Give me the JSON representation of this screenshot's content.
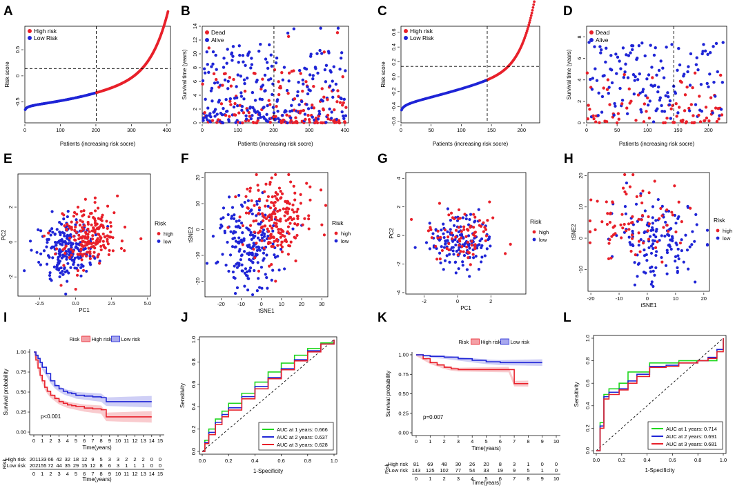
{
  "colors": {
    "high": "#e8202a",
    "low": "#1f25d6",
    "green": "#1fd61f",
    "highFill": "#f4a0a6",
    "lowFill": "#a8a8ee"
  },
  "chart_data": [
    {
      "panel": "A",
      "type": "scatter",
      "title": "",
      "xlabel": "Patients (increasing risk socre)",
      "ylabel": "Risk score",
      "n": 403,
      "cutoff_x": 201,
      "cutoff_y": 0.14,
      "xlim": [
        0,
        410
      ],
      "ylim": [
        -0.9,
        0.95
      ],
      "xticks": [
        0,
        100,
        200,
        300,
        400
      ],
      "yticks": [
        -0.5,
        0,
        0.5
      ],
      "legend": [
        "High risk",
        "Low Risk"
      ],
      "series": [
        "High risk",
        "Low Risk"
      ]
    },
    {
      "panel": "B",
      "type": "scatter",
      "title": "",
      "xlabel": "Patients (increasing risk socre)",
      "ylabel": "Survival time (years)",
      "n": 403,
      "cutoff_x": 201,
      "xlim": [
        0,
        410
      ],
      "ylim": [
        0,
        14
      ],
      "xticks": [
        0,
        100,
        200,
        300,
        400
      ],
      "yticks": [
        0,
        2,
        4,
        6,
        8,
        10,
        12,
        14
      ],
      "legend": [
        "Dead",
        "Alive"
      ]
    },
    {
      "panel": "C",
      "type": "scatter",
      "title": "",
      "xlabel": "Patients (increasing risk socre)",
      "ylabel": "Risk score",
      "n": 224,
      "cutoff_x": 143,
      "cutoff_y": 0.14,
      "xlim": [
        0,
        230
      ],
      "ylim": [
        -0.62,
        0.68
      ],
      "xticks": [
        0,
        50,
        100,
        150,
        200
      ],
      "yticks": [
        -0.6,
        -0.4,
        -0.2,
        0.0,
        0.2,
        0.4,
        0.6
      ],
      "legend": [
        "High risk",
        "Low Risk"
      ]
    },
    {
      "panel": "D",
      "type": "scatter",
      "title": "",
      "xlabel": "Patients (increasing risk socre)",
      "ylabel": "Survival time (years)",
      "n": 224,
      "cutoff_x": 143,
      "xlim": [
        0,
        230
      ],
      "ylim": [
        0,
        9
      ],
      "xticks": [
        0,
        50,
        100,
        150,
        200
      ],
      "yticks": [
        0,
        2,
        4,
        6,
        8
      ],
      "legend": [
        "Dead",
        "Alive"
      ]
    },
    {
      "panel": "E",
      "type": "scatter",
      "xlabel": "PC1",
      "ylabel": "PC2",
      "xlim": [
        -4,
        5.2
      ],
      "ylim": [
        -3.1,
        3.9
      ],
      "xticks": [
        "-2.5",
        "0.0",
        "2.5",
        "5.0"
      ],
      "xtickvals": [
        -2.5,
        0,
        2.5,
        5
      ],
      "yticks": [
        "-2",
        "0",
        "2"
      ],
      "ytickvals": [
        -2,
        0,
        2
      ],
      "legend_title": "Risk",
      "legend": [
        "high",
        "low"
      ],
      "n_high": 201,
      "n_low": 202
    },
    {
      "panel": "F",
      "type": "scatter",
      "xlabel": "tSNE1",
      "ylabel": "tSNE2",
      "xlim": [
        -28,
        33
      ],
      "ylim": [
        -26,
        22
      ],
      "xticks": [
        "-20",
        "-10",
        "0",
        "10",
        "20",
        "30"
      ],
      "xtickvals": [
        -20,
        -10,
        0,
        10,
        20,
        30
      ],
      "yticks": [
        "-20",
        "-10",
        "0",
        "10",
        "20"
      ],
      "ytickvals": [
        -20,
        -10,
        0,
        10,
        20
      ],
      "legend_title": "Risk",
      "legend": [
        "high",
        "low"
      ]
    },
    {
      "panel": "G",
      "type": "scatter",
      "xlabel": "PC1",
      "ylabel": "PC2",
      "xlim": [
        -3.1,
        4.1
      ],
      "ylim": [
        -4.1,
        4.4
      ],
      "xticks": [
        "-2",
        "0",
        "2"
      ],
      "xtickvals": [
        -2,
        0,
        2
      ],
      "yticks": [
        "-4",
        "-2",
        "0",
        "2",
        "4"
      ],
      "ytickvals": [
        -4,
        -2,
        0,
        2,
        4
      ],
      "legend_title": "Risk",
      "legend": [
        "high",
        "low"
      ]
    },
    {
      "panel": "H",
      "type": "scatter",
      "xlabel": "tSNE1",
      "ylabel": "tSNE2",
      "xlim": [
        -21,
        22
      ],
      "ylim": [
        -17,
        21
      ],
      "xticks": [
        "-20",
        "-10",
        "0",
        "10",
        "20"
      ],
      "xtickvals": [
        -20,
        -10,
        0,
        10,
        20
      ],
      "yticks": [
        "-10",
        "0",
        "10",
        "20"
      ],
      "ytickvals": [
        -10,
        0,
        10,
        20
      ],
      "legend_title": "Risk",
      "legend": [
        "high",
        "low"
      ]
    },
    {
      "panel": "I",
      "type": "line",
      "subtype": "kaplan-meier",
      "xlabel": "Time(years)",
      "ylabel": "Survival probability",
      "pvalue": "p<0.001",
      "legend_title": "Risk",
      "legend": [
        "High risk",
        "Low risk"
      ],
      "xlim": [
        0,
        15
      ],
      "ylim": [
        0,
        1
      ],
      "xticks": [
        0,
        1,
        2,
        3,
        4,
        5,
        6,
        7,
        8,
        9,
        10,
        11,
        12,
        13,
        14,
        15
      ],
      "yticks": [
        "0.00",
        "0.25",
        "0.50",
        "0.75",
        "1.00"
      ],
      "series": [
        {
          "name": "High risk",
          "x": [
            0,
            0.25,
            0.5,
            0.75,
            1,
            1.3,
            1.6,
            2,
            2.5,
            3,
            3.5,
            4,
            4.5,
            5,
            6,
            7,
            8,
            8.6,
            9.5,
            10,
            12,
            14
          ],
          "y": [
            1,
            0.9,
            0.8,
            0.71,
            0.64,
            0.56,
            0.51,
            0.46,
            0.42,
            0.38,
            0.36,
            0.34,
            0.33,
            0.32,
            0.3,
            0.29,
            0.28,
            0.19,
            0.19,
            0.19,
            0.19,
            0.19
          ]
        },
        {
          "name": "Low risk",
          "x": [
            0,
            0.25,
            0.5,
            0.75,
            1,
            1.5,
            2,
            2.5,
            3,
            3.5,
            4,
            4.5,
            5,
            6,
            7,
            8,
            8.6,
            9.5,
            10,
            12,
            14
          ],
          "y": [
            1,
            0.96,
            0.92,
            0.87,
            0.81,
            0.73,
            0.64,
            0.58,
            0.54,
            0.51,
            0.49,
            0.48,
            0.46,
            0.45,
            0.44,
            0.43,
            0.38,
            0.38,
            0.38,
            0.38,
            0.38
          ]
        }
      ],
      "risk_table": {
        "title": "Risk",
        "xlabel": "Time(years)",
        "rows": [
          {
            "name": "High risk",
            "values": [
              "201",
              "133",
              "66",
              "42",
              "32",
              "18",
              "12",
              "9",
              "5",
              "3",
              "3",
              "2",
              "2",
              "2",
              "0",
              "0"
            ]
          },
          {
            "name": "Low risk",
            "values": [
              "202",
              "155",
              "72",
              "44",
              "35",
              "29",
              "15",
              "12",
              "8",
              "6",
              "3",
              "1",
              "1",
              "1",
              "0",
              "0"
            ]
          }
        ]
      }
    },
    {
      "panel": "J",
      "type": "line",
      "subtype": "roc",
      "xlabel": "1-Specificity",
      "ylabel": "Sensitivity",
      "xticks": [
        "0.0",
        "0.2",
        "0.4",
        "0.6",
        "0.8",
        "1.0"
      ],
      "yticks": [
        "0.0",
        "0.2",
        "0.4",
        "0.6",
        "0.8",
        "1.0"
      ],
      "xlim": [
        0,
        1
      ],
      "ylim": [
        0,
        1
      ],
      "legend": [
        "AUC at 1 years: 0.666",
        "AUC at 2 years: 0.637",
        "AUC at 3 years: 0.628"
      ],
      "series": [
        {
          "name": "AUC at 1 years: 0.666",
          "auc": 0.666,
          "x": [
            0,
            0.02,
            0.05,
            0.1,
            0.15,
            0.2,
            0.3,
            0.4,
            0.5,
            0.6,
            0.7,
            0.8,
            0.9,
            1
          ],
          "y": [
            0,
            0.1,
            0.2,
            0.29,
            0.36,
            0.43,
            0.52,
            0.62,
            0.71,
            0.79,
            0.86,
            0.92,
            0.97,
            1
          ]
        },
        {
          "name": "AUC at 2 years: 0.637",
          "auc": 0.637,
          "x": [
            0,
            0.02,
            0.05,
            0.1,
            0.15,
            0.2,
            0.3,
            0.4,
            0.5,
            0.6,
            0.7,
            0.8,
            0.9,
            1
          ],
          "y": [
            0,
            0.08,
            0.17,
            0.26,
            0.33,
            0.39,
            0.49,
            0.58,
            0.66,
            0.74,
            0.82,
            0.9,
            0.96,
            1
          ]
        },
        {
          "name": "AUC at 3 years: 0.628",
          "auc": 0.628,
          "x": [
            0,
            0.02,
            0.05,
            0.1,
            0.15,
            0.2,
            0.3,
            0.4,
            0.5,
            0.6,
            0.7,
            0.8,
            0.9,
            1
          ],
          "y": [
            0,
            0.07,
            0.15,
            0.24,
            0.31,
            0.37,
            0.47,
            0.56,
            0.65,
            0.73,
            0.81,
            0.89,
            0.96,
            1
          ]
        }
      ]
    },
    {
      "panel": "K",
      "type": "line",
      "subtype": "kaplan-meier",
      "xlabel": "Time(years)",
      "ylabel": "Survival probability",
      "pvalue": "p=0.007",
      "legend_title": "Risk",
      "legend": [
        "High risk",
        "Low risk"
      ],
      "xlim": [
        0,
        10
      ],
      "ylim": [
        0,
        1
      ],
      "xticks": [
        0,
        1,
        2,
        3,
        4,
        5,
        6,
        7,
        8,
        9,
        10
      ],
      "yticks": [
        "0.00",
        "0.25",
        "0.50",
        "0.75",
        "1.00"
      ],
      "series": [
        {
          "name": "High risk",
          "x": [
            0,
            0.5,
            1,
            1.5,
            2,
            2.5,
            3,
            4,
            5,
            6,
            6.6,
            7,
            8
          ],
          "y": [
            1,
            0.95,
            0.9,
            0.87,
            0.84,
            0.82,
            0.81,
            0.81,
            0.81,
            0.81,
            0.81,
            0.63,
            0.63
          ]
        },
        {
          "name": "Low risk",
          "x": [
            0,
            0.5,
            1,
            2,
            3,
            4,
            5,
            6,
            7,
            8,
            9
          ],
          "y": [
            1,
            0.99,
            0.98,
            0.97,
            0.95,
            0.93,
            0.91,
            0.9,
            0.9,
            0.9,
            0.9
          ]
        }
      ],
      "risk_table": {
        "title": "Risk",
        "xlabel": "Time(years)",
        "rows": [
          {
            "name": "High risk",
            "values": [
              "81",
              "69",
              "48",
              "30",
              "26",
              "20",
              "8",
              "3",
              "1",
              "0",
              "0"
            ]
          },
          {
            "name": "Low risk",
            "values": [
              "143",
              "125",
              "102",
              "77",
              "54",
              "33",
              "19",
              "9",
              "5",
              "1",
              "0"
            ]
          }
        ]
      }
    },
    {
      "panel": "L",
      "type": "line",
      "subtype": "roc",
      "xlabel": "1-Specificity",
      "ylabel": "Sensitivity",
      "xticks": [
        "0.0",
        "0.2",
        "0.4",
        "0.6",
        "0.8",
        "1.0"
      ],
      "yticks": [
        "0.0",
        "0.2",
        "0.4",
        "0.6",
        "0.8",
        "1.0"
      ],
      "xlim": [
        0,
        1
      ],
      "ylim": [
        0,
        1
      ],
      "legend": [
        "AUC at 1 years: 0.714",
        "AUC at 2 years: 0.691",
        "AUC at 3 years: 0.681"
      ],
      "series": [
        {
          "name": "AUC at 1 years: 0.714",
          "auc": 0.714,
          "x": [
            0,
            0.03,
            0.06,
            0.1,
            0.18,
            0.25,
            0.32,
            0.42,
            0.55,
            0.65,
            0.72,
            0.8,
            0.88,
            0.95,
            1
          ],
          "y": [
            0,
            0.25,
            0.5,
            0.55,
            0.6,
            0.7,
            0.7,
            0.78,
            0.78,
            0.8,
            0.8,
            0.8,
            0.8,
            0.9,
            1
          ]
        },
        {
          "name": "AUC at 2 years: 0.691",
          "auc": 0.691,
          "x": [
            0,
            0.03,
            0.06,
            0.1,
            0.18,
            0.25,
            0.32,
            0.42,
            0.55,
            0.65,
            0.72,
            0.8,
            0.88,
            0.95,
            1
          ],
          "y": [
            0,
            0.22,
            0.48,
            0.52,
            0.55,
            0.62,
            0.68,
            0.75,
            0.76,
            0.78,
            0.78,
            0.8,
            0.83,
            0.9,
            1
          ]
        },
        {
          "name": "AUC at 3 years: 0.681",
          "auc": 0.681,
          "x": [
            0,
            0.03,
            0.06,
            0.1,
            0.18,
            0.25,
            0.32,
            0.42,
            0.55,
            0.65,
            0.72,
            0.8,
            0.88,
            0.95,
            1
          ],
          "y": [
            0,
            0.2,
            0.46,
            0.5,
            0.54,
            0.6,
            0.66,
            0.74,
            0.75,
            0.78,
            0.78,
            0.8,
            0.82,
            0.88,
            1
          ]
        }
      ]
    }
  ]
}
